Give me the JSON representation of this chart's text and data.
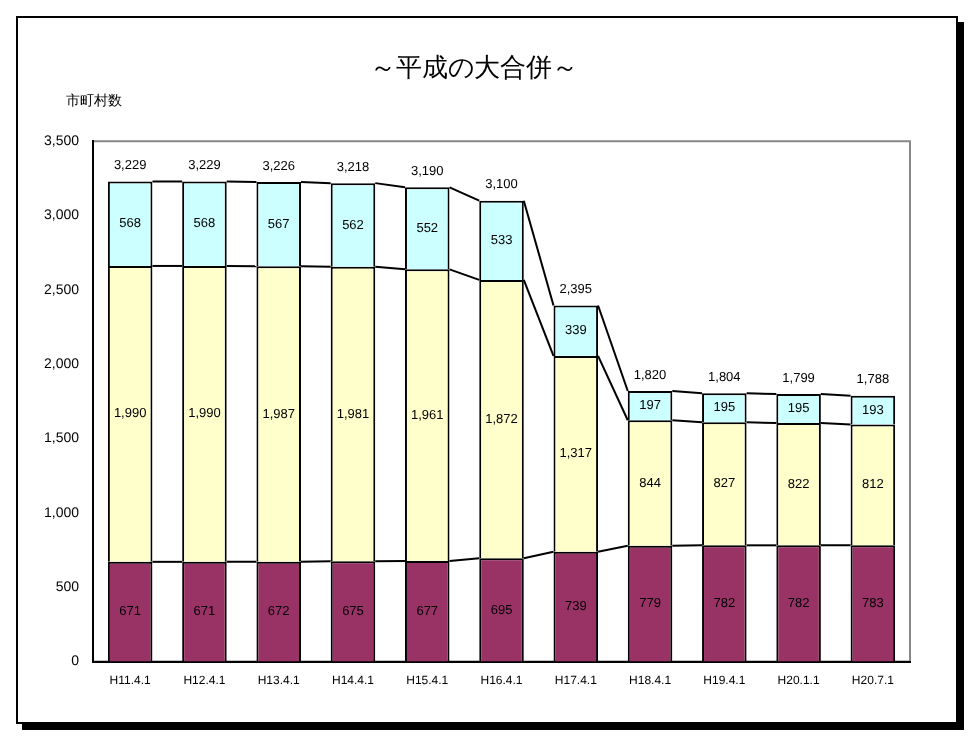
{
  "chart_data": {
    "type": "bar",
    "title": "～平成の大合併～",
    "ylabel": "市町村数",
    "stacked": true,
    "categories": [
      "H11.4.1",
      "H12.4.1",
      "H13.4.1",
      "H14.4.1",
      "H15.4.1",
      "H16.4.1",
      "H17.4.1",
      "H18.4.1",
      "H19.4.1",
      "H20.1.1",
      "H20.7.1"
    ],
    "series": [
      {
        "color": "#993366",
        "values": [
          671,
          671,
          672,
          675,
          677,
          695,
          739,
          779,
          782,
          782,
          783
        ],
        "value_labels": [
          "671",
          "671",
          "672",
          "675",
          "677",
          "695",
          "739",
          "779",
          "782",
          "782",
          "783"
        ]
      },
      {
        "color": "#ffffcc",
        "values": [
          1990,
          1990,
          1987,
          1981,
          1961,
          1872,
          1317,
          844,
          827,
          822,
          812
        ],
        "value_labels": [
          "1,990",
          "1,990",
          "1,987",
          "1,981",
          "1,961",
          "1,872",
          "1,317",
          "844",
          "827",
          "822",
          "812"
        ]
      },
      {
        "color": "#ccffff",
        "values": [
          568,
          568,
          567,
          562,
          552,
          533,
          339,
          197,
          195,
          195,
          193
        ],
        "value_labels": [
          "568",
          "568",
          "567",
          "562",
          "552",
          "533",
          "339",
          "197",
          "195",
          "195",
          "193"
        ]
      }
    ],
    "totals": [
      "3,229",
      "3,229",
      "3,226",
      "3,218",
      "3,190",
      "3,100",
      "2,395",
      "1,820",
      "1,804",
      "1,799",
      "1,788"
    ],
    "ylim": [
      0,
      3500
    ],
    "yticks": [
      {
        "value": 0,
        "label": "0"
      },
      {
        "value": 500,
        "label": "500"
      },
      {
        "value": 1000,
        "label": "1,000"
      },
      {
        "value": 1500,
        "label": "1,500"
      },
      {
        "value": 2000,
        "label": "2,000"
      },
      {
        "value": 2500,
        "label": "2,500"
      },
      {
        "value": 3000,
        "label": "3,000"
      },
      {
        "value": 3500,
        "label": "3,500"
      }
    ],
    "grid": false,
    "legend": false
  }
}
